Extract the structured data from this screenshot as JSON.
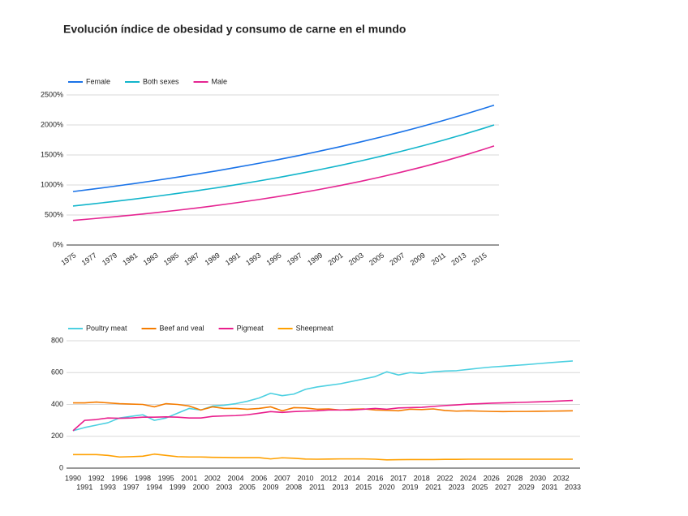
{
  "title": "Evolución índice de obesidad y consumo de carne en el mundo",
  "chart_data": [
    {
      "type": "line",
      "x": [
        1975,
        1977,
        1979,
        1981,
        1983,
        1985,
        1987,
        1989,
        1991,
        1993,
        1995,
        1997,
        1999,
        2001,
        2003,
        2005,
        2007,
        2009,
        2011,
        2013,
        2015,
        2016
      ],
      "xlim": [
        1975,
        2016
      ],
      "xticks": [
        1975,
        1977,
        1979,
        1981,
        1983,
        1985,
        1987,
        1989,
        1991,
        1993,
        1995,
        1997,
        1999,
        2001,
        2003,
        2005,
        2007,
        2009,
        2011,
        2013,
        2015
      ],
      "ylim": [
        0,
        2500
      ],
      "yticks": [
        {
          "value": 0,
          "label": "0%"
        },
        {
          "value": 500,
          "label": "500%"
        },
        {
          "value": 1000,
          "label": "1000%"
        },
        {
          "value": 1500,
          "label": "1500%"
        },
        {
          "value": 2000,
          "label": "2000%"
        },
        {
          "value": 2500,
          "label": "2500%"
        }
      ],
      "grid": true,
      "legend": "top",
      "series": [
        {
          "name": "Female",
          "color": "#1a73e8",
          "values": [
            890,
            933,
            978,
            1025,
            1074,
            1126,
            1180,
            1236,
            1296,
            1358,
            1423,
            1491,
            1563,
            1638,
            1717,
            1799,
            1886,
            1976,
            2071,
            2171,
            2275,
            2330
          ]
        },
        {
          "name": "Both sexes",
          "color": "#12b5cb",
          "values": [
            650,
            687,
            725,
            766,
            809,
            855,
            903,
            954,
            1008,
            1064,
            1124,
            1188,
            1255,
            1325,
            1400,
            1479,
            1562,
            1650,
            1743,
            1841,
            1945,
            2000
          ]
        },
        {
          "name": "Male",
          "color": "#e52592",
          "values": [
            410,
            439,
            470,
            503,
            538,
            576,
            616,
            659,
            706,
            755,
            808,
            865,
            926,
            991,
            1060,
            1135,
            1215,
            1300,
            1391,
            1489,
            1594,
            1650
          ]
        }
      ]
    },
    {
      "type": "line",
      "categories": [
        "1990",
        "1991",
        "1992",
        "1993",
        "1996",
        "1997",
        "1998",
        "1994",
        "1995",
        "1999",
        "2001",
        "2000",
        "2002",
        "2003",
        "2004",
        "2005",
        "2006",
        "2009",
        "2007",
        "2008",
        "2010",
        "2011",
        "2012",
        "2013",
        "2014",
        "2015",
        "2016",
        "2020",
        "2017",
        "2019",
        "2018",
        "2021",
        "2022",
        "2023",
        "2024",
        "2025",
        "2026",
        "2027",
        "2028",
        "2029",
        "2030",
        "2031",
        "2032",
        "2033"
      ],
      "ylim": [
        0,
        800
      ],
      "yticks": [
        0,
        200,
        400,
        600,
        800
      ],
      "grid": true,
      "legend": "top",
      "series": [
        {
          "name": "Poultry meat",
          "color": "#4dd0e1",
          "values": [
            235,
            255,
            270,
            285,
            315,
            325,
            335,
            300,
            315,
            345,
            375,
            365,
            390,
            395,
            405,
            420,
            440,
            470,
            455,
            465,
            495,
            510,
            520,
            530,
            545,
            560,
            575,
            605,
            585,
            600,
            595,
            605,
            610,
            612,
            620,
            628,
            635,
            640,
            645,
            650,
            656,
            662,
            668,
            673
          ]
        },
        {
          "name": "Beef and veal",
          "color": "#f57c00",
          "values": [
            410,
            410,
            415,
            410,
            405,
            402,
            400,
            385,
            405,
            400,
            390,
            365,
            385,
            375,
            375,
            370,
            375,
            385,
            360,
            380,
            378,
            370,
            372,
            365,
            370,
            372,
            365,
            363,
            360,
            370,
            368,
            372,
            362,
            358,
            360,
            358,
            356,
            355,
            356,
            356,
            357,
            358,
            359,
            360
          ]
        },
        {
          "name": "Pigmeat",
          "color": "#e91e8c",
          "values": [
            235,
            300,
            305,
            315,
            313,
            315,
            320,
            320,
            322,
            320,
            315,
            315,
            325,
            328,
            330,
            335,
            345,
            355,
            350,
            355,
            358,
            360,
            365,
            365,
            365,
            370,
            375,
            370,
            378,
            380,
            382,
            388,
            393,
            397,
            402,
            405,
            408,
            410,
            412,
            414,
            416,
            419,
            422,
            425
          ]
        },
        {
          "name": "Sheepmeat",
          "color": "#ffa000",
          "values": [
            85,
            85,
            85,
            80,
            70,
            72,
            75,
            88,
            80,
            72,
            70,
            70,
            68,
            67,
            66,
            66,
            66,
            58,
            65,
            62,
            57,
            56,
            57,
            58,
            58,
            58,
            56,
            52,
            53,
            54,
            54,
            54,
            55,
            55,
            56,
            56,
            56,
            56,
            56,
            56,
            56,
            56,
            56,
            56
          ]
        }
      ]
    }
  ]
}
